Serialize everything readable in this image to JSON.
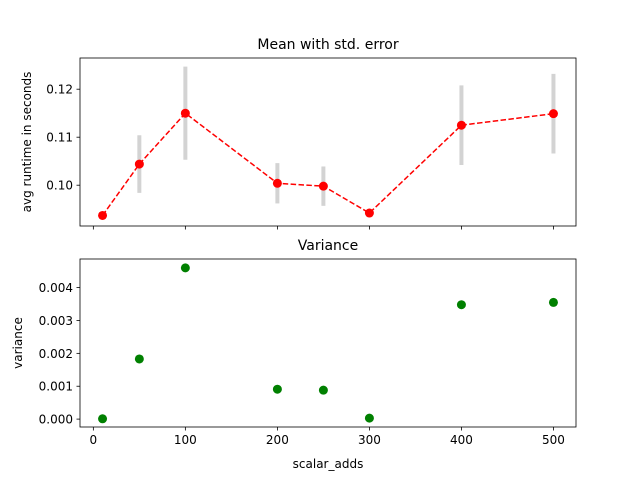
{
  "chart_data": [
    {
      "type": "line",
      "title": "Mean with std. error",
      "xlabel": "",
      "ylabel": "avg runtime in seconds",
      "xlim": [
        -14.5,
        524.5
      ],
      "ylim": [
        0.0915,
        0.1265
      ],
      "xticks": [
        0,
        100,
        200,
        300,
        400,
        500
      ],
      "yticks": [
        0.1,
        0.11,
        0.12
      ],
      "ytick_labels": [
        "0.10",
        "0.11",
        "0.12"
      ],
      "grid": false,
      "series": [
        {
          "x": [
            10,
            50,
            100,
            200,
            250,
            300,
            400,
            500
          ],
          "y": [
            0.0937,
            0.1044,
            0.115,
            0.1004,
            0.0998,
            0.0942,
            0.1125,
            0.1149
          ],
          "yerr": [
            0.0,
            0.006,
            0.0097,
            0.0042,
            0.0041,
            0.0,
            0.0083,
            0.0083
          ],
          "color": "#ff0000",
          "errcolor": "#d3d3d3",
          "linestyle": "dashed",
          "marker": "circle"
        }
      ]
    },
    {
      "type": "scatter",
      "title": "Variance",
      "xlabel": "scalar_adds",
      "ylabel": "variance",
      "xlim": [
        -14.5,
        524.5
      ],
      "ylim": [
        -0.00024,
        0.00487
      ],
      "xticks": [
        0,
        100,
        200,
        300,
        400,
        500
      ],
      "xtick_labels": [
        "0",
        "100",
        "200",
        "300",
        "400",
        "500"
      ],
      "yticks": [
        0.0,
        0.001,
        0.002,
        0.003,
        0.004
      ],
      "ytick_labels": [
        "0.000",
        "0.001",
        "0.002",
        "0.003",
        "0.004"
      ],
      "grid": false,
      "series": [
        {
          "x": [
            10,
            50,
            100,
            200,
            250,
            300,
            400,
            500
          ],
          "y": [
            1e-05,
            0.00183,
            0.0046,
            0.00091,
            0.00088,
            3e-05,
            0.00348,
            0.00355
          ],
          "color": "#008000",
          "marker": "circle"
        }
      ]
    }
  ]
}
